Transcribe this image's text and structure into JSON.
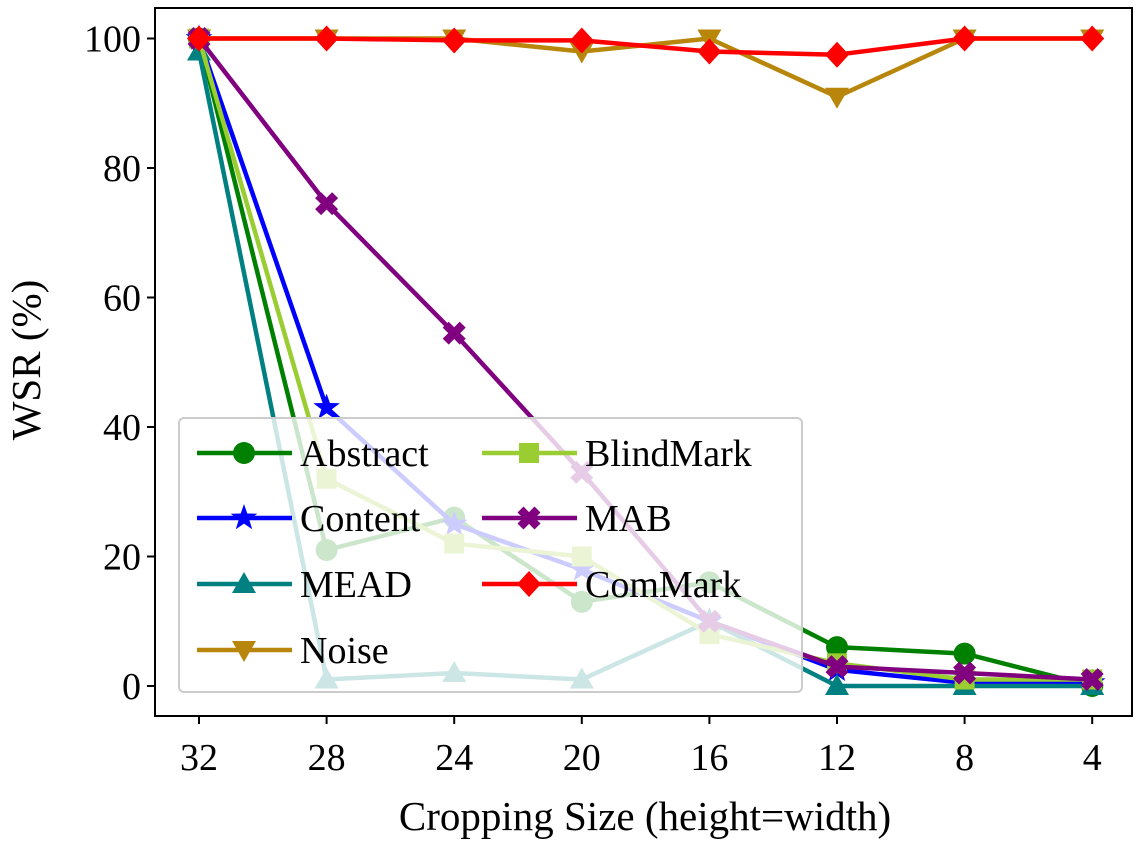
{
  "chart_data": {
    "type": "line",
    "xlabel": "Cropping Size (height=width)",
    "ylabel": "WSR (%)",
    "x": [
      32,
      28,
      24,
      20,
      16,
      12,
      8,
      4
    ],
    "xtick_labels": [
      "32",
      "28",
      "24",
      "20",
      "16",
      "12",
      "8",
      "4"
    ],
    "yticks": [
      0,
      20,
      40,
      60,
      80,
      100
    ],
    "ytick_labels": [
      "0",
      "20",
      "40",
      "60",
      "80",
      "100"
    ],
    "ylim": [
      -4,
      105
    ],
    "grid": false,
    "legend_position": "lower-left",
    "series": [
      {
        "name": "Abstract",
        "color": "#008000",
        "marker": "circle",
        "values": [
          100,
          21,
          26,
          13,
          16,
          6,
          5,
          0
        ]
      },
      {
        "name": "Content",
        "color": "#0000ff",
        "marker": "star",
        "values": [
          100,
          43,
          25,
          18,
          10,
          2.5,
          0.5,
          0.5
        ]
      },
      {
        "name": "MEAD",
        "color": "#008080",
        "marker": "triangle-up",
        "values": [
          98,
          1,
          2,
          1,
          10,
          0,
          0,
          0
        ]
      },
      {
        "name": "Noise",
        "color": "#b8860b",
        "marker": "triangle-down",
        "values": [
          100,
          100,
          100,
          98,
          100,
          91,
          100,
          100
        ]
      },
      {
        "name": "BlindMark",
        "color": "#9acd32",
        "marker": "square",
        "values": [
          100,
          32,
          22,
          20,
          8,
          3.5,
          1,
          1
        ]
      },
      {
        "name": "MAB",
        "color": "#800080",
        "marker": "x",
        "values": [
          100,
          74.5,
          54.5,
          33,
          10,
          3,
          2,
          1
        ]
      },
      {
        "name": "ComMark",
        "color": "#ff0000",
        "marker": "diamond",
        "values": [
          100,
          100,
          99.7,
          99.7,
          98,
          97.5,
          100,
          100
        ]
      }
    ],
    "legend_columns": [
      [
        "Abstract",
        "Content",
        "MEAD",
        "Noise"
      ],
      [
        "BlindMark",
        "MAB",
        "ComMark"
      ]
    ]
  }
}
